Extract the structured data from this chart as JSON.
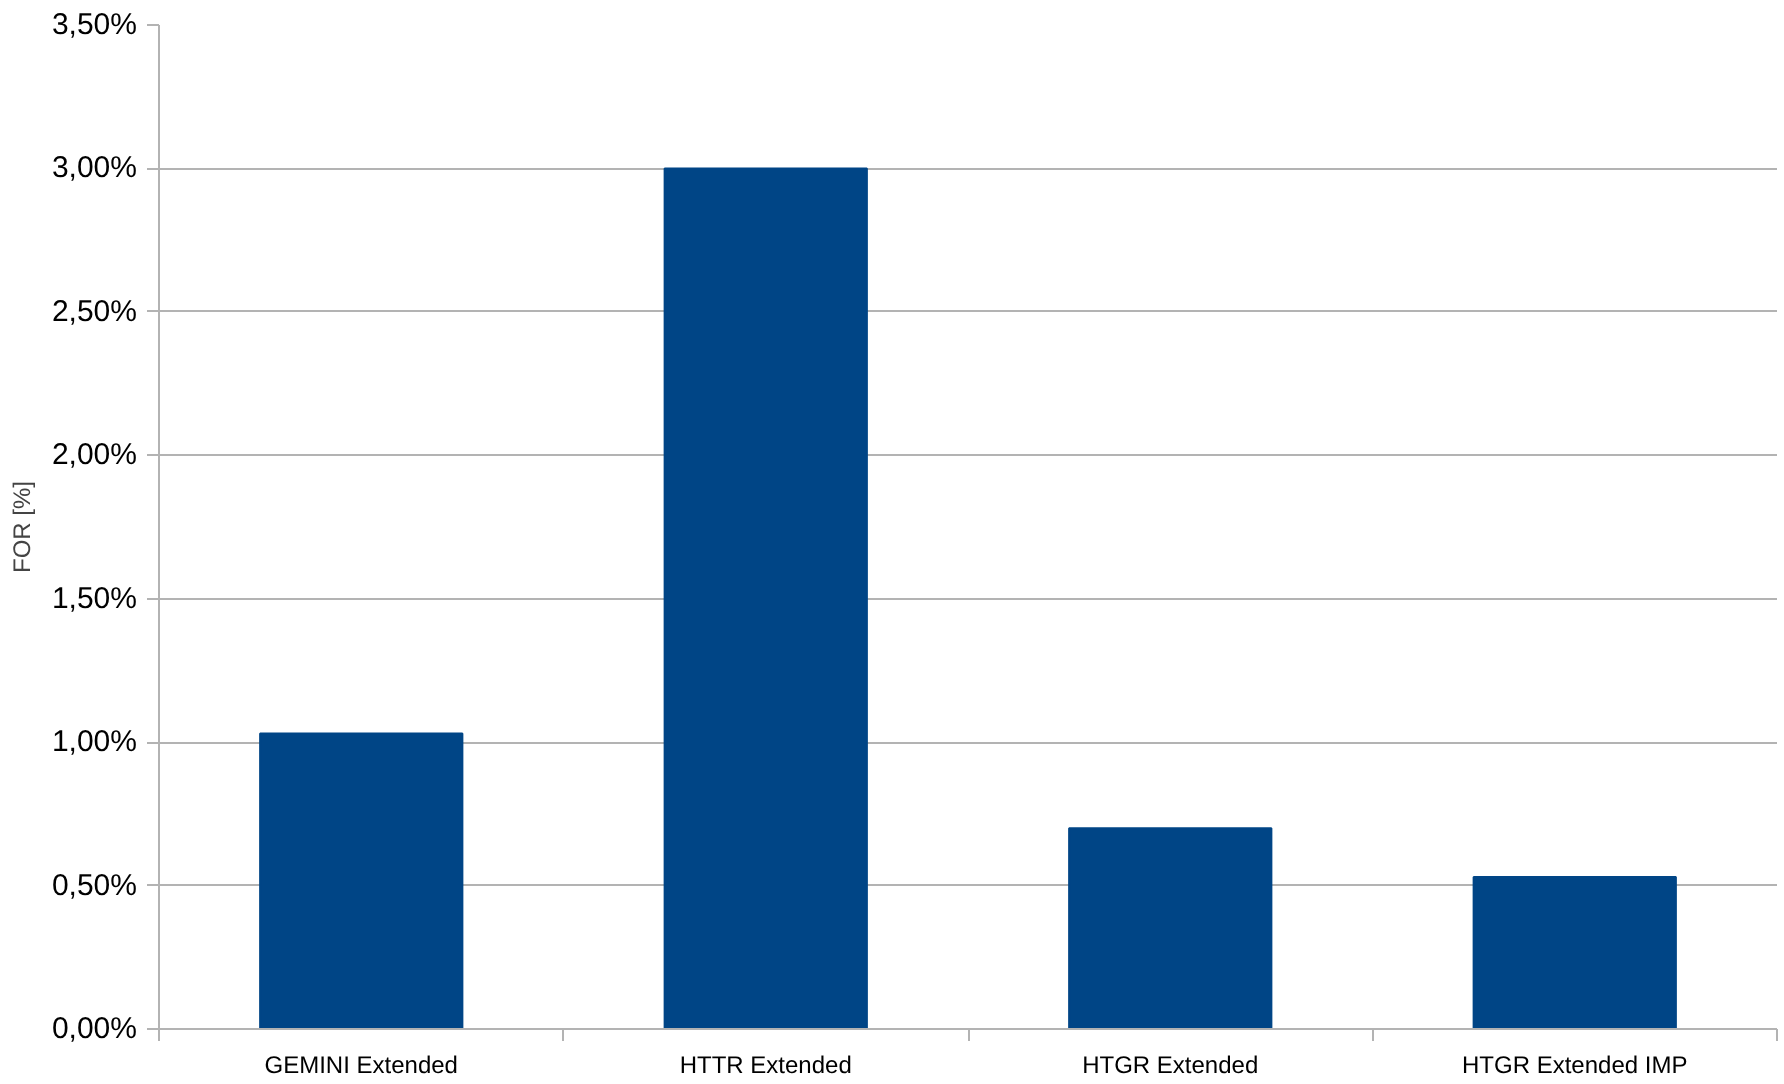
{
  "chart_data": {
    "type": "bar",
    "ylabel": "FOR [%]",
    "categories": [
      "GEMINI Extended",
      "HTTR Extended",
      "HTGR Extended",
      "HTGR Extended IMP"
    ],
    "values": [
      1.03,
      3.0,
      0.7,
      0.53
    ],
    "color": "#004586",
    "ylim": [
      0,
      3.5
    ],
    "yticks": [
      {
        "value": 0,
        "label": "0,00%"
      },
      {
        "value": 0.5,
        "label": "0,50%"
      },
      {
        "value": 1,
        "label": "1,00%"
      },
      {
        "value": 1.5,
        "label": "1,50%"
      },
      {
        "value": 2,
        "label": "2,00%"
      },
      {
        "value": 2.5,
        "label": "2,50%"
      },
      {
        "value": 3,
        "label": "3,00%"
      },
      {
        "value": 3.5,
        "label": "3,50%"
      }
    ],
    "grid": "y"
  }
}
